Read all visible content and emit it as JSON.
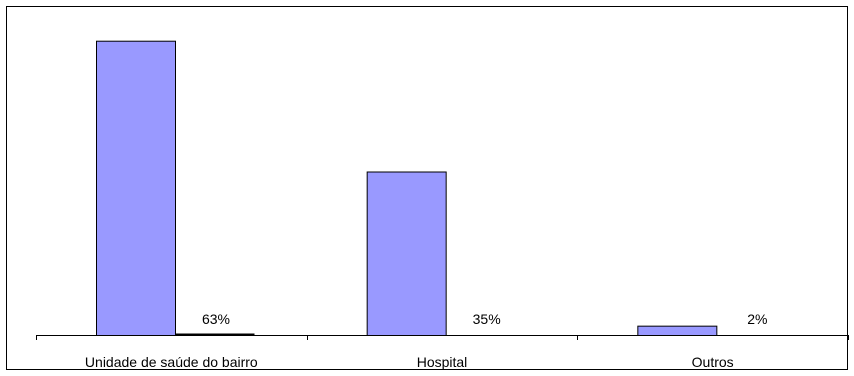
{
  "chart_data": {
    "type": "bar",
    "title": "",
    "xlabel": "",
    "ylabel": "",
    "categories": [
      "Unidade de saúde do bairro",
      "Hospital",
      "Outros"
    ],
    "series": [
      {
        "values": [
          63,
          35,
          2
        ],
        "color": "#9999ff"
      }
    ],
    "data_labels": [
      "63%",
      "35%",
      "2%"
    ],
    "ylim": [
      0,
      70
    ],
    "grid": false,
    "legend": "none",
    "y_axis_visible": false
  }
}
